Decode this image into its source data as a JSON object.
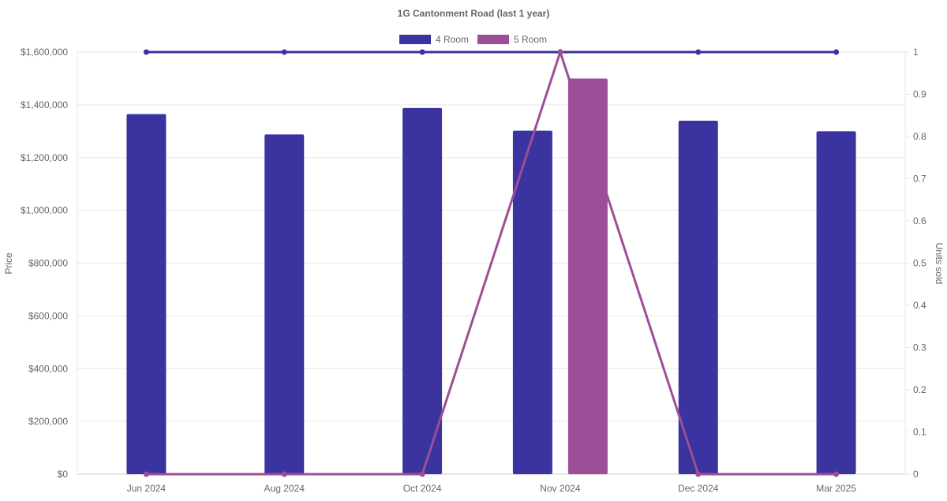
{
  "chart_data": {
    "type": "bar",
    "title": "1G Cantonment Road (last 1 year)",
    "categories": [
      "Jun 2024",
      "Aug 2024",
      "Oct 2024",
      "Nov 2024",
      "Dec 2024",
      "Mar 2025"
    ],
    "ylabel": "Price",
    "y2label": "Units sold",
    "ylim": [
      0,
      1600000
    ],
    "y2lim": [
      0,
      1
    ],
    "y_ticks": [
      "$0",
      "$200,000",
      "$400,000",
      "$600,000",
      "$800,000",
      "$1,000,000",
      "$1,200,000",
      "$1,400,000",
      "$1,600,000"
    ],
    "y2_ticks": [
      "0",
      "0.1",
      "0.2",
      "0.3",
      "0.4",
      "0.5",
      "0.6",
      "0.7",
      "0.8",
      "0.9",
      "1"
    ],
    "grid": true,
    "legend_position": "top-center",
    "series": [
      {
        "name": "4 Room",
        "color": "#3a33a0",
        "price": [
          1365000,
          1288000,
          1388000,
          1302000,
          1340000,
          1300000
        ],
        "units_sold": [
          1,
          1,
          1,
          1,
          1,
          1
        ]
      },
      {
        "name": "5 Room",
        "color": "#9c4f96",
        "price": [
          null,
          null,
          null,
          1500000,
          null,
          null
        ],
        "units_sold": [
          0,
          0,
          0,
          1,
          0,
          0
        ]
      }
    ]
  }
}
